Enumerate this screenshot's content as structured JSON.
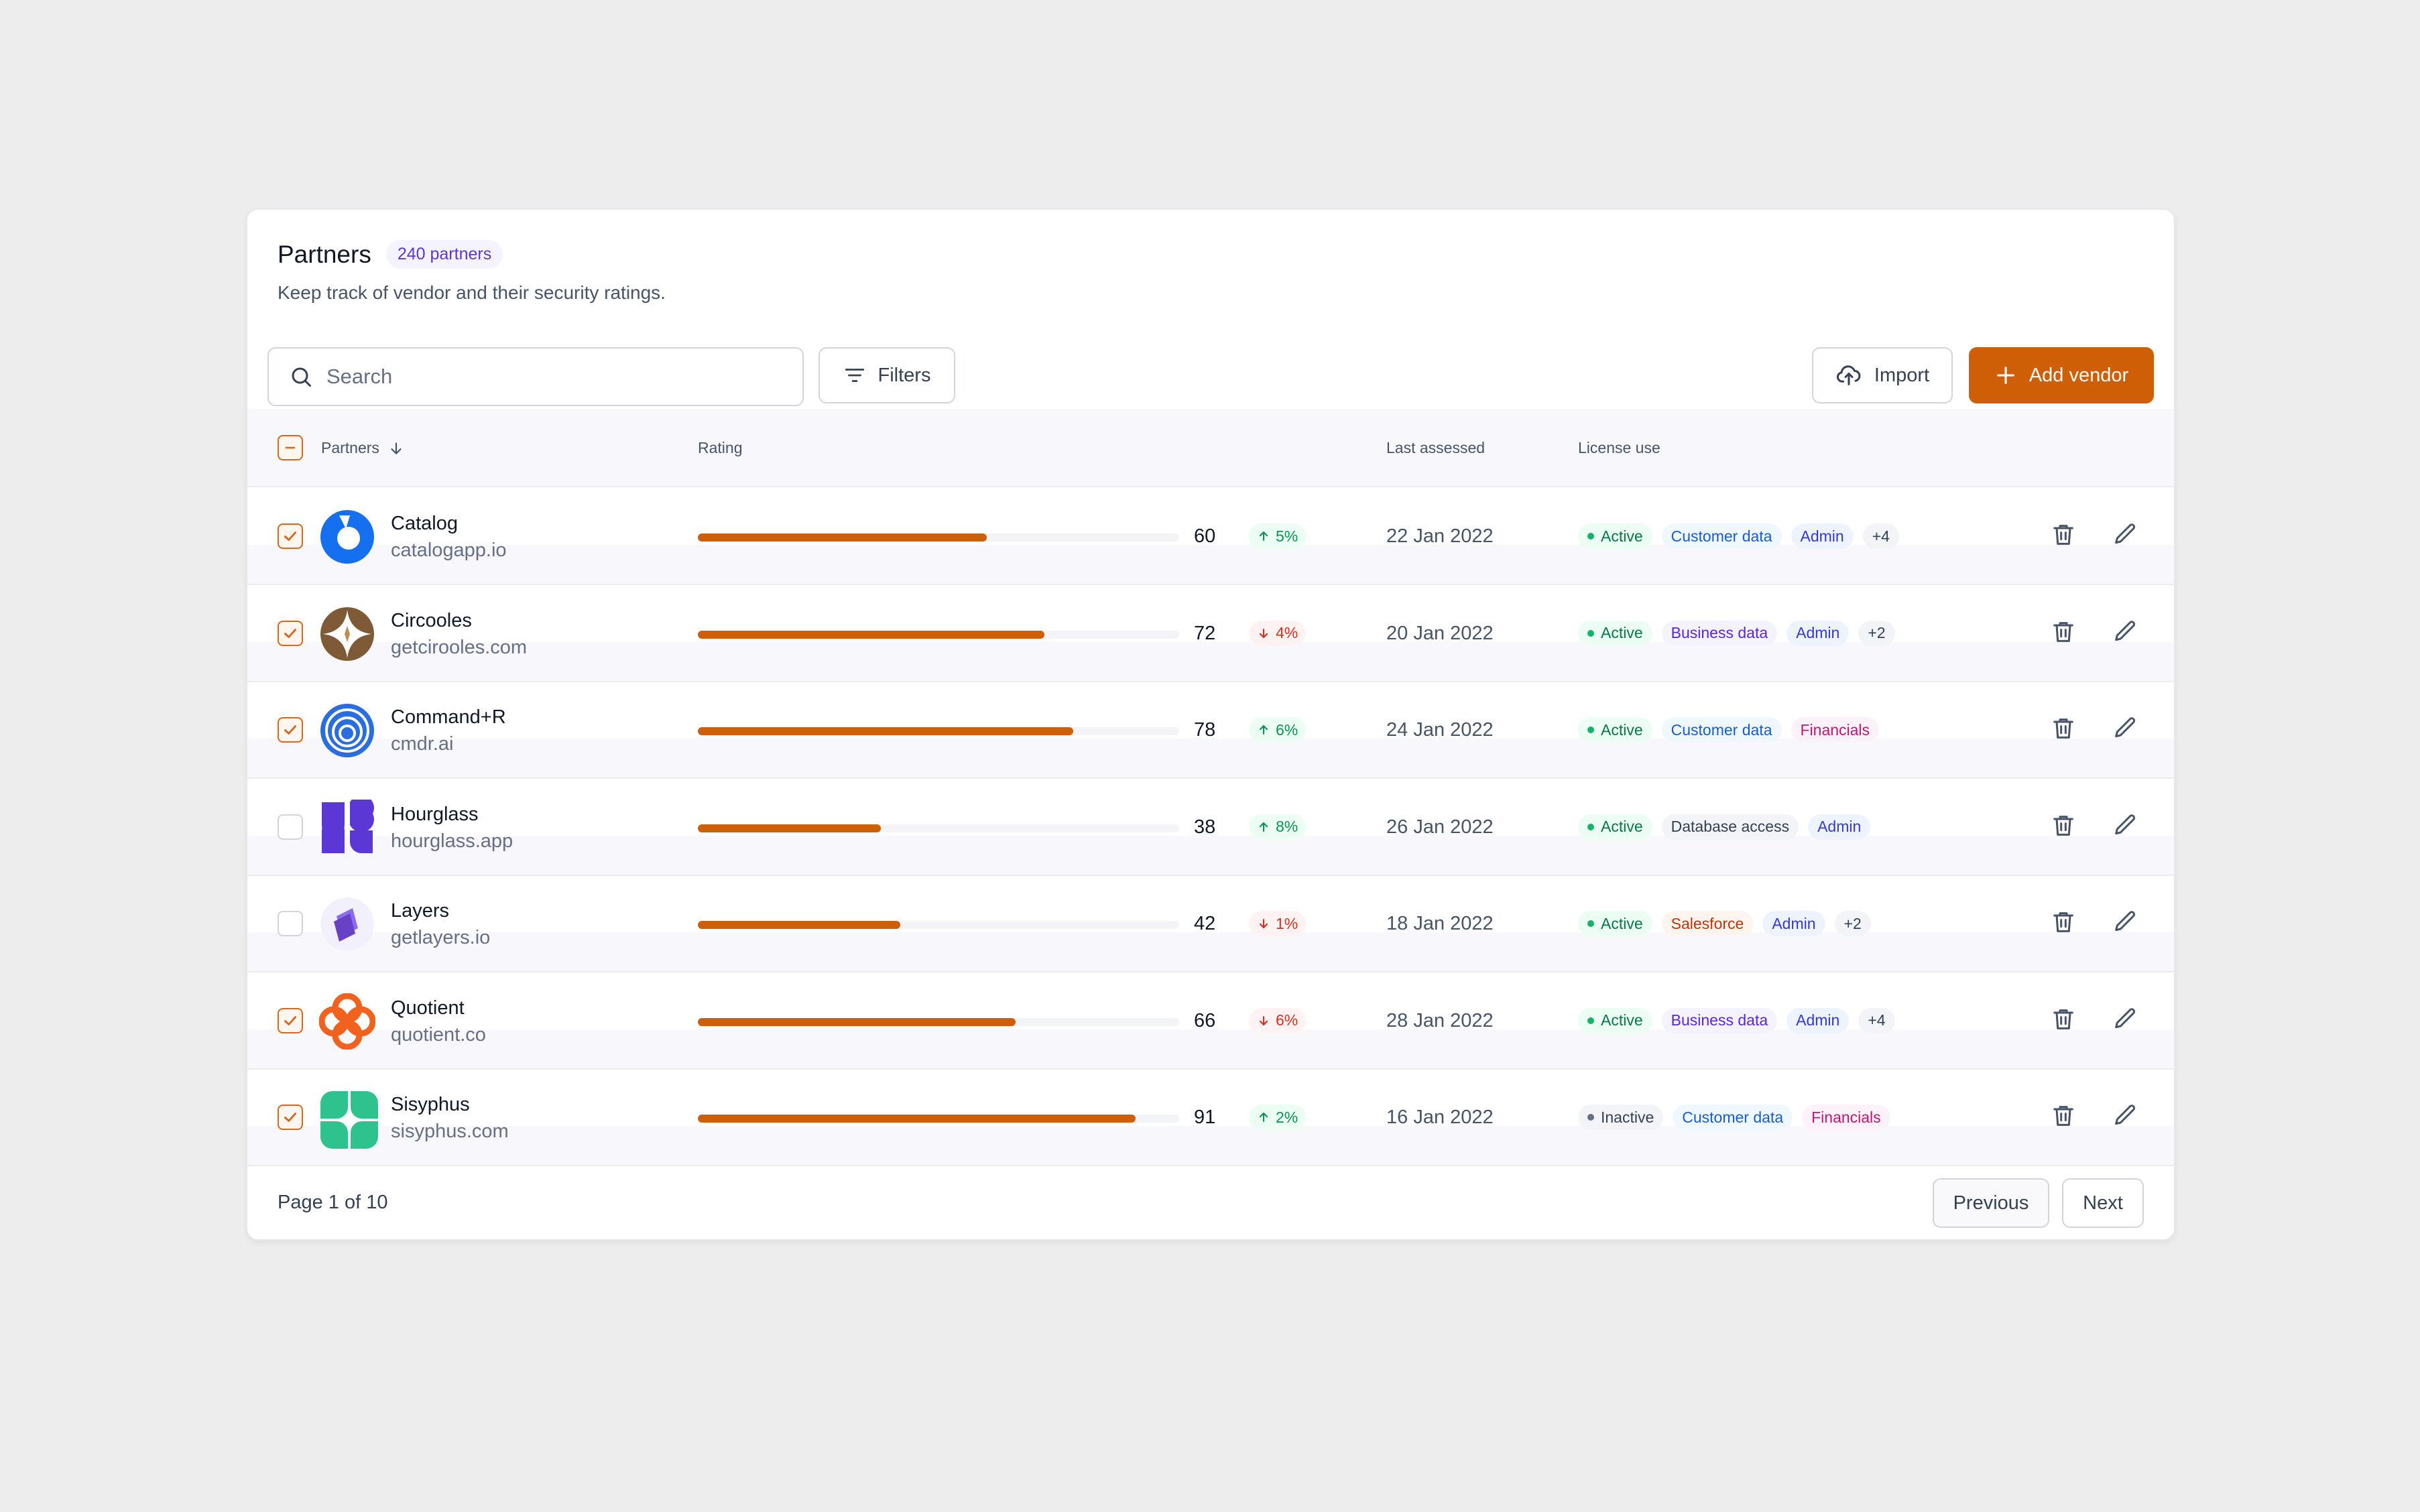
{
  "header": {
    "title": "Partners",
    "count_badge": "240 partners",
    "subtitle": "Keep track of vendor and their security ratings."
  },
  "toolbar": {
    "search_placeholder": "Search",
    "filters_label": "Filters",
    "import_label": "Import",
    "add_label": "Add vendor"
  },
  "table": {
    "columns": {
      "partners": "Partners",
      "rating": "Rating",
      "last_assessed": "Last assessed",
      "license_use": "License use"
    },
    "rows": [
      {
        "name": "Catalog",
        "domain": "catalogapp.io",
        "checked": true,
        "logo": "catalog-logo",
        "rating": 60,
        "trend": "5%",
        "trend_dir": "up",
        "date": "22 Jan 2022",
        "tags": [
          {
            "text": "Active",
            "kind": "active"
          },
          {
            "text": "Customer data",
            "kind": "blue"
          },
          {
            "text": "Admin",
            "kind": "indigo"
          },
          {
            "text": "+4",
            "kind": "gray"
          }
        ]
      },
      {
        "name": "Circooles",
        "domain": "getcirooles.com",
        "checked": true,
        "logo": "circooles-logo",
        "rating": 72,
        "trend": "4%",
        "trend_dir": "down",
        "date": "20 Jan 2022",
        "tags": [
          {
            "text": "Active",
            "kind": "active"
          },
          {
            "text": "Business data",
            "kind": "purple"
          },
          {
            "text": "Admin",
            "kind": "indigo"
          },
          {
            "text": "+2",
            "kind": "gray"
          }
        ]
      },
      {
        "name": "Command+R",
        "domain": "cmdr.ai",
        "checked": true,
        "logo": "commandr-logo",
        "rating": 78,
        "trend": "6%",
        "trend_dir": "up",
        "date": "24 Jan 2022",
        "tags": [
          {
            "text": "Active",
            "kind": "active"
          },
          {
            "text": "Customer data",
            "kind": "blue"
          },
          {
            "text": "Financials",
            "kind": "pink"
          }
        ]
      },
      {
        "name": "Hourglass",
        "domain": "hourglass.app",
        "checked": false,
        "logo": "hourglass-logo",
        "rating": 38,
        "trend": "8%",
        "trend_dir": "up",
        "date": "26 Jan 2022",
        "tags": [
          {
            "text": "Active",
            "kind": "active"
          },
          {
            "text": "Database access",
            "kind": "gray"
          },
          {
            "text": "Admin",
            "kind": "indigo"
          }
        ]
      },
      {
        "name": "Layers",
        "domain": "getlayers.io",
        "checked": false,
        "logo": "layers-logo",
        "rating": 42,
        "trend": "1%",
        "trend_dir": "down",
        "date": "18 Jan 2022",
        "tags": [
          {
            "text": "Active",
            "kind": "active"
          },
          {
            "text": "Salesforce",
            "kind": "orange"
          },
          {
            "text": "Admin",
            "kind": "indigo"
          },
          {
            "text": "+2",
            "kind": "gray"
          }
        ]
      },
      {
        "name": "Quotient",
        "domain": "quotient.co",
        "checked": true,
        "logo": "quotient-logo",
        "rating": 66,
        "trend": "6%",
        "trend_dir": "down",
        "date": "28 Jan 2022",
        "tags": [
          {
            "text": "Active",
            "kind": "active"
          },
          {
            "text": "Business data",
            "kind": "purple"
          },
          {
            "text": "Admin",
            "kind": "indigo"
          },
          {
            "text": "+4",
            "kind": "gray"
          }
        ]
      },
      {
        "name": "Sisyphus",
        "domain": "sisyphus.com",
        "checked": true,
        "logo": "sisyphus-logo",
        "rating": 91,
        "trend": "2%",
        "trend_dir": "up",
        "date": "16 Jan 2022",
        "tags": [
          {
            "text": "Inactive",
            "kind": "inactive"
          },
          {
            "text": "Customer data",
            "kind": "blue"
          },
          {
            "text": "Financials",
            "kind": "pink"
          }
        ]
      }
    ]
  },
  "pagination": {
    "page_info": "Page 1 of 10",
    "previous_label": "Previous",
    "next_label": "Next"
  },
  "colors": {
    "accent": "#cf5f07",
    "rating_bar": "#cf5f07",
    "checkbox": "#d9661a"
  }
}
